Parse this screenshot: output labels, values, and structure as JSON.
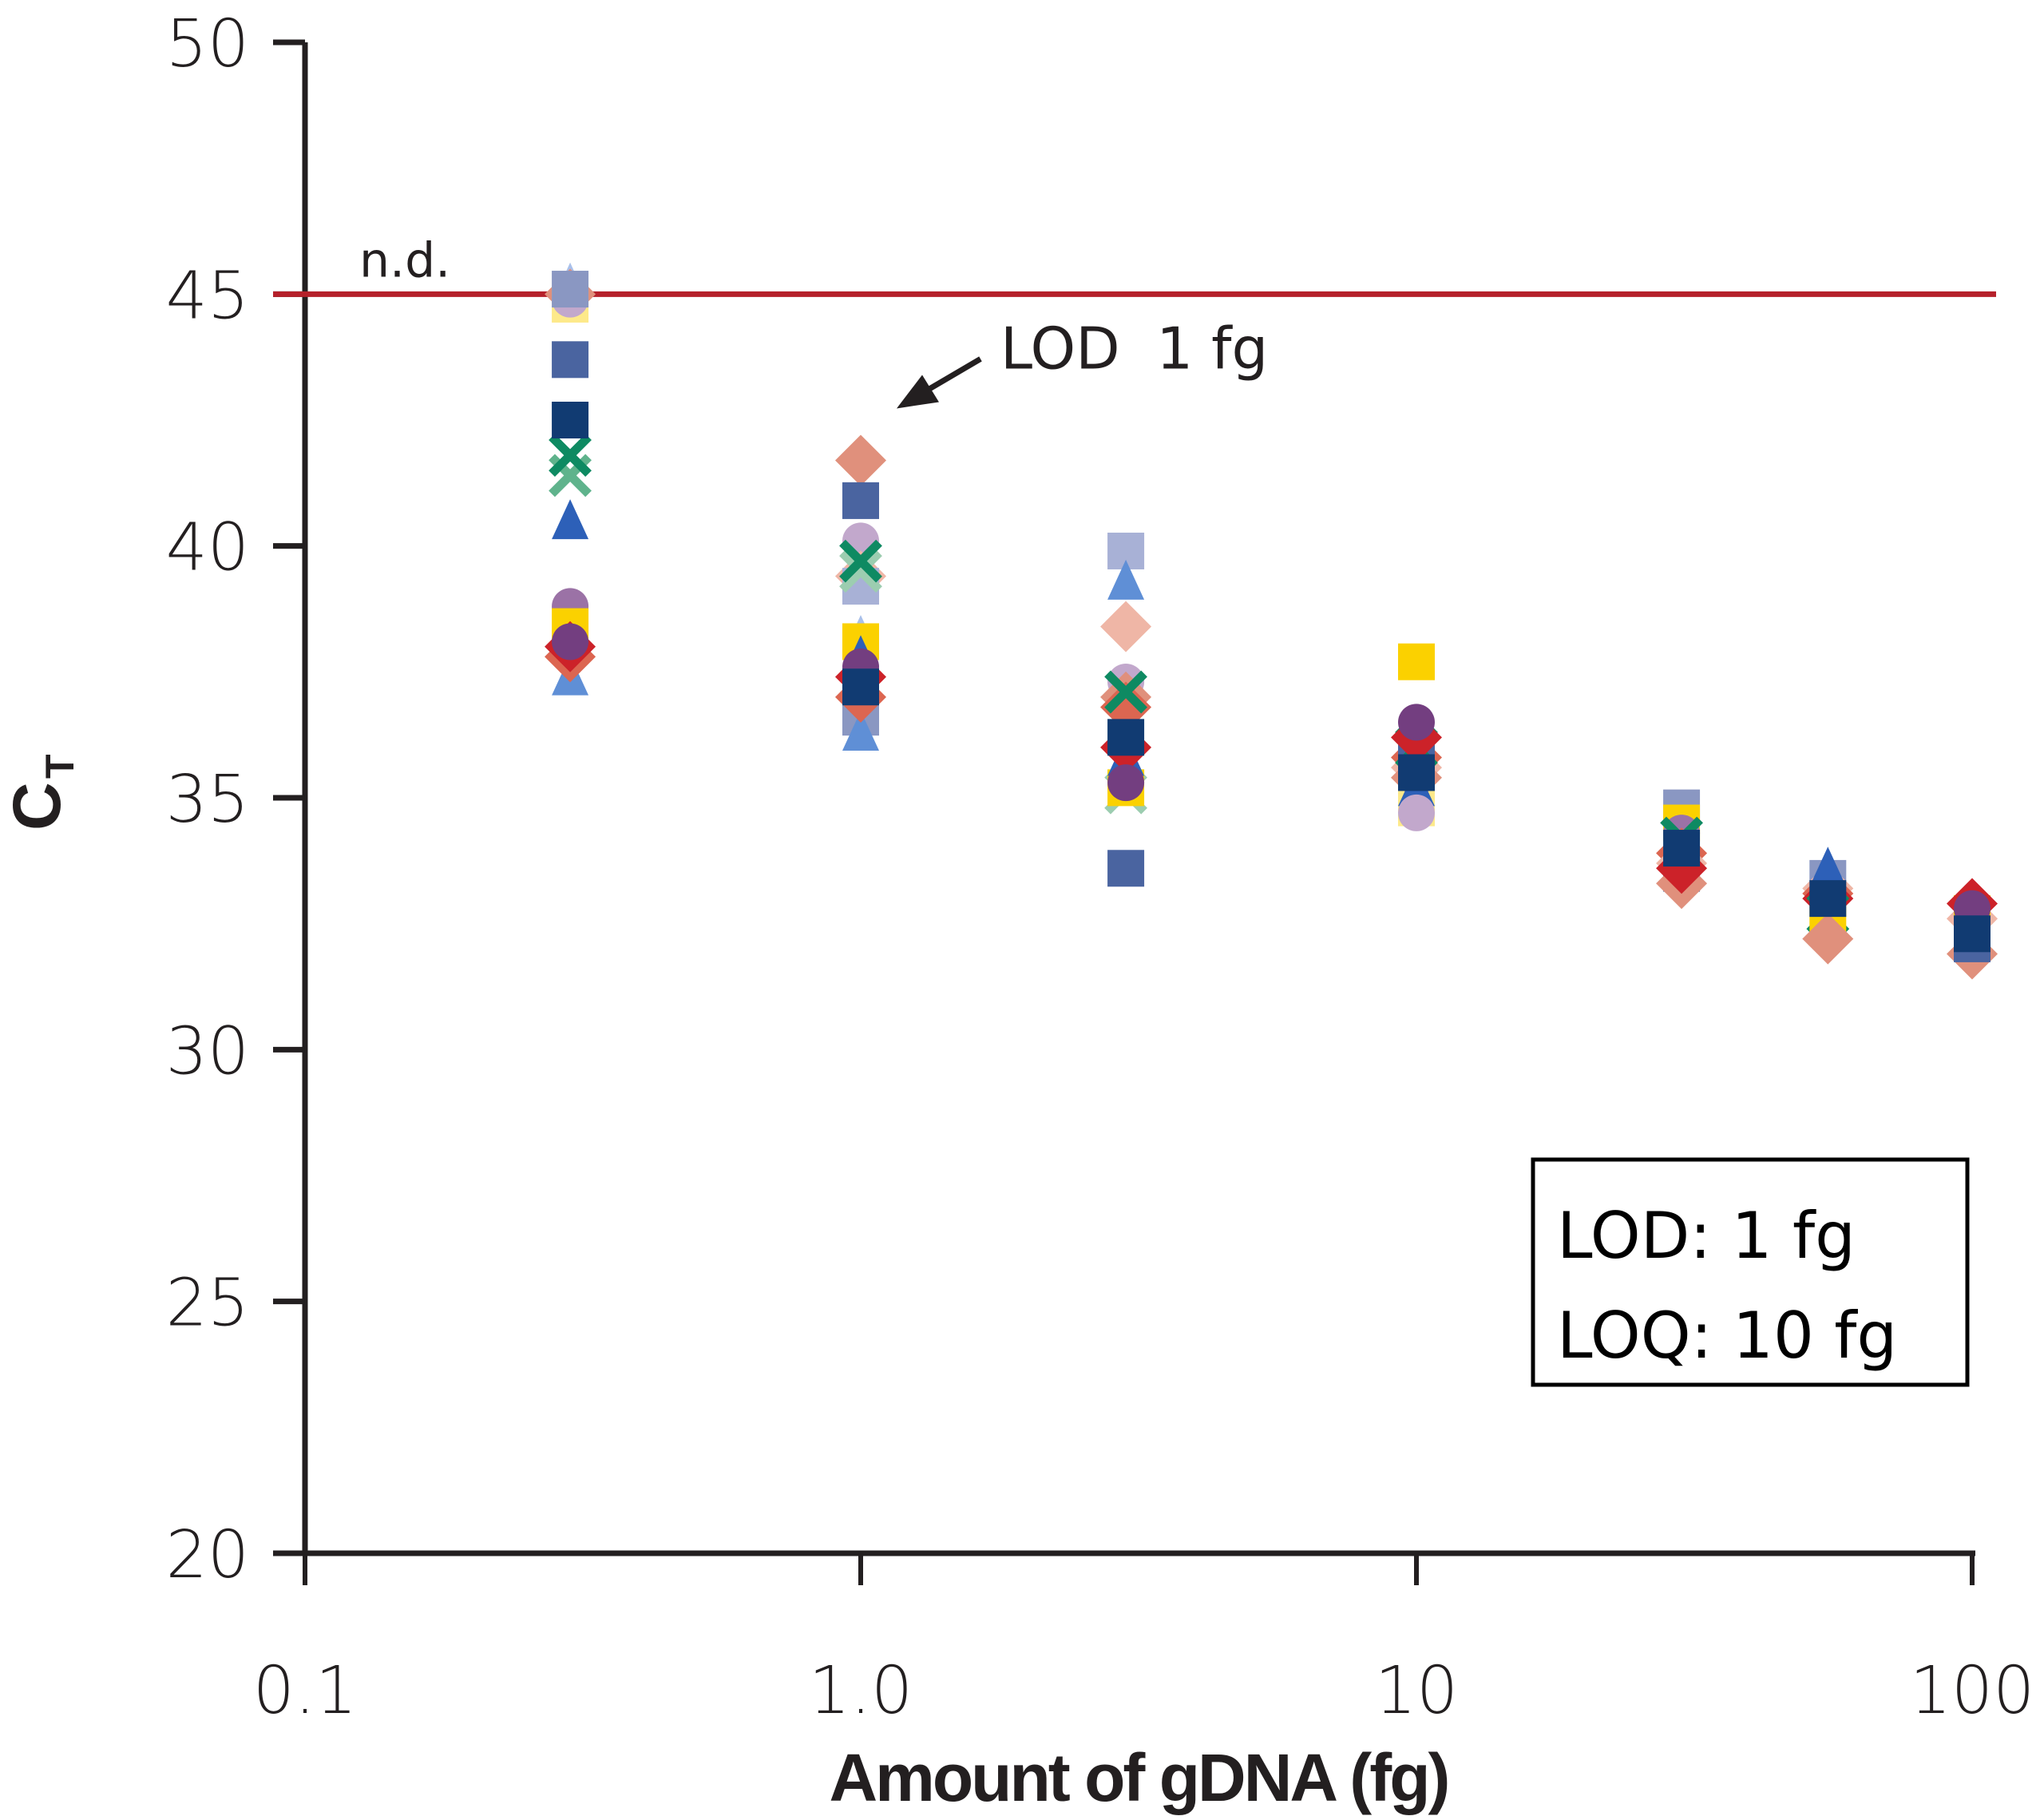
{
  "chart_data": {
    "type": "scatter",
    "title": "",
    "xlabel": "Amount of gDNA (fg)",
    "ylabel": "C",
    "ylabel_subscript": "T",
    "xscale": "log",
    "xlim": [
      0.1,
      100
    ],
    "ylim": [
      20,
      50
    ],
    "x_ticks": [
      0.1,
      1,
      10,
      100
    ],
    "x_tick_labels": [
      "0.1",
      "1.0",
      "10",
      "100"
    ],
    "y_ticks": [
      20,
      25,
      30,
      35,
      40,
      45,
      50
    ],
    "y_tick_labels": [
      "20",
      "25",
      "30",
      "35",
      "40",
      "45",
      "50"
    ],
    "grid": false,
    "legend": null,
    "reference_line": {
      "y": 45,
      "label": "n.d.",
      "color": "#b5202a"
    },
    "annotation": {
      "text": "LOD  1 fg",
      "points_to": {
        "x": 1.0,
        "y": 41.7
      }
    },
    "inset_box": {
      "lines": [
        "LOD: 1 fg",
        "LOQ: 10 fg"
      ],
      "placement": "bottom-right"
    },
    "marker_styles": {
      "sq_lav": {
        "shape": "square",
        "color": "#8a97c2"
      },
      "sq_lav2": {
        "shape": "square",
        "color": "#a8b1d6"
      },
      "sq_blue": {
        "shape": "square",
        "color": "#4a64a0"
      },
      "sq_navy": {
        "shape": "square",
        "color": "#113b72"
      },
      "sq_yel": {
        "shape": "square",
        "color": "#fbd100"
      },
      "sq_yel2": {
        "shape": "square",
        "color": "#fde98a"
      },
      "x_green": {
        "shape": "x",
        "color": "#0e8a62"
      },
      "x_lgreen": {
        "shape": "x",
        "color": "#5fb38c"
      },
      "x_pgreen": {
        "shape": "x",
        "color": "#9ccdb0"
      },
      "tri_blue": {
        "shape": "triangle",
        "color": "#2d60b8"
      },
      "tri_lblue": {
        "shape": "triangle",
        "color": "#5f8fd6"
      },
      "tri_pblue": {
        "shape": "triangle",
        "color": "#a9c0ea"
      },
      "ci_purple": {
        "shape": "circle",
        "color": "#733e80"
      },
      "ci_mauve": {
        "shape": "circle",
        "color": "#9b72a6"
      },
      "ci_lav": {
        "shape": "circle",
        "color": "#c2a8cc"
      },
      "di_red": {
        "shape": "diamond",
        "color": "#cc2229"
      },
      "di_salmon": {
        "shape": "diamond",
        "color": "#e0907c"
      },
      "di_coral": {
        "shape": "diamond",
        "color": "#dc6651"
      },
      "di_pink": {
        "shape": "diamond",
        "color": "#efb6a6"
      }
    },
    "points": [
      {
        "x": 0.3,
        "y": 45.2,
        "m": "tri_pblue"
      },
      {
        "x": 0.3,
        "y": 45.0,
        "m": "di_salmon"
      },
      {
        "x": 0.3,
        "y": 44.8,
        "m": "sq_yel2"
      },
      {
        "x": 0.3,
        "y": 44.9,
        "m": "ci_lav"
      },
      {
        "x": 0.3,
        "y": 45.1,
        "m": "sq_lav"
      },
      {
        "x": 0.3,
        "y": 43.7,
        "m": "sq_blue"
      },
      {
        "x": 0.3,
        "y": 41.4,
        "m": "x_lgreen"
      },
      {
        "x": 0.3,
        "y": 41.8,
        "m": "x_green"
      },
      {
        "x": 0.3,
        "y": 42.5,
        "m": "sq_navy"
      },
      {
        "x": 0.3,
        "y": 40.5,
        "m": "tri_blue"
      },
      {
        "x": 0.3,
        "y": 37.4,
        "m": "tri_lblue"
      },
      {
        "x": 0.3,
        "y": 38.8,
        "m": "ci_mauve"
      },
      {
        "x": 0.3,
        "y": 38.4,
        "m": "sq_yel"
      },
      {
        "x": 0.3,
        "y": 37.8,
        "m": "di_coral"
      },
      {
        "x": 0.3,
        "y": 38.0,
        "m": "di_red"
      },
      {
        "x": 0.3,
        "y": 38.1,
        "m": "ci_purple"
      },
      {
        "x": 1.0,
        "y": 41.7,
        "m": "di_salmon"
      },
      {
        "x": 1.0,
        "y": 40.9,
        "m": "sq_blue"
      },
      {
        "x": 1.0,
        "y": 40.1,
        "m": "ci_lav"
      },
      {
        "x": 1.0,
        "y": 39.4,
        "m": "di_pink"
      },
      {
        "x": 1.0,
        "y": 39.2,
        "m": "sq_lav2"
      },
      {
        "x": 1.0,
        "y": 39.5,
        "m": "x_pgreen"
      },
      {
        "x": 1.0,
        "y": 39.7,
        "m": "x_green"
      },
      {
        "x": 1.0,
        "y": 38.2,
        "m": "tri_pblue"
      },
      {
        "x": 1.0,
        "y": 38.1,
        "m": "sq_yel"
      },
      {
        "x": 1.0,
        "y": 36.6,
        "m": "sq_lav"
      },
      {
        "x": 1.0,
        "y": 36.3,
        "m": "tri_lblue"
      },
      {
        "x": 1.0,
        "y": 37.0,
        "m": "di_coral"
      },
      {
        "x": 1.0,
        "y": 37.8,
        "m": "tri_blue"
      },
      {
        "x": 1.0,
        "y": 37.4,
        "m": "di_red"
      },
      {
        "x": 1.0,
        "y": 37.6,
        "m": "ci_purple"
      },
      {
        "x": 1.0,
        "y": 37.2,
        "m": "sq_navy"
      },
      {
        "x": 3.0,
        "y": 39.9,
        "m": "sq_lav2"
      },
      {
        "x": 3.0,
        "y": 39.3,
        "m": "tri_lblue"
      },
      {
        "x": 3.0,
        "y": 38.4,
        "m": "di_pink"
      },
      {
        "x": 3.0,
        "y": 37.3,
        "m": "ci_lav"
      },
      {
        "x": 3.0,
        "y": 37.0,
        "m": "di_salmon"
      },
      {
        "x": 3.0,
        "y": 36.8,
        "m": "di_coral"
      },
      {
        "x": 3.0,
        "y": 37.1,
        "m": "x_green"
      },
      {
        "x": 3.0,
        "y": 35.1,
        "m": "x_pgreen"
      },
      {
        "x": 3.0,
        "y": 35.2,
        "m": "sq_yel"
      },
      {
        "x": 3.0,
        "y": 35.8,
        "m": "tri_blue"
      },
      {
        "x": 3.0,
        "y": 36.0,
        "m": "di_red"
      },
      {
        "x": 3.0,
        "y": 36.2,
        "m": "sq_navy"
      },
      {
        "x": 3.0,
        "y": 35.3,
        "m": "ci_purple"
      },
      {
        "x": 3.0,
        "y": 33.6,
        "m": "sq_blue"
      },
      {
        "x": 10,
        "y": 37.7,
        "m": "sq_yel"
      },
      {
        "x": 10,
        "y": 34.8,
        "m": "sq_yel2"
      },
      {
        "x": 10,
        "y": 35.8,
        "m": "di_coral"
      },
      {
        "x": 10,
        "y": 35.6,
        "m": "di_pink"
      },
      {
        "x": 10,
        "y": 35.4,
        "m": "di_salmon"
      },
      {
        "x": 10,
        "y": 36.0,
        "m": "sq_blue"
      },
      {
        "x": 10,
        "y": 36.0,
        "m": "x_green"
      },
      {
        "x": 10,
        "y": 35.2,
        "m": "tri_blue"
      },
      {
        "x": 10,
        "y": 36.2,
        "m": "di_red"
      },
      {
        "x": 10,
        "y": 36.5,
        "m": "ci_purple"
      },
      {
        "x": 10,
        "y": 35.5,
        "m": "sq_navy"
      },
      {
        "x": 10,
        "y": 34.7,
        "m": "ci_lav"
      },
      {
        "x": 30,
        "y": 34.8,
        "m": "sq_lav"
      },
      {
        "x": 30,
        "y": 34.5,
        "m": "sq_yel"
      },
      {
        "x": 30,
        "y": 34.3,
        "m": "ci_mauve"
      },
      {
        "x": 30,
        "y": 34.2,
        "m": "x_green"
      },
      {
        "x": 30,
        "y": 33.9,
        "m": "di_coral"
      },
      {
        "x": 30,
        "y": 33.7,
        "m": "di_pink"
      },
      {
        "x": 30,
        "y": 33.5,
        "m": "sq_blue"
      },
      {
        "x": 30,
        "y": 33.3,
        "m": "di_salmon"
      },
      {
        "x": 30,
        "y": 33.6,
        "m": "di_red"
      },
      {
        "x": 30,
        "y": 34.0,
        "m": "sq_navy"
      },
      {
        "x": 55,
        "y": 33.4,
        "m": "sq_lav"
      },
      {
        "x": 55,
        "y": 33.2,
        "m": "di_pink"
      },
      {
        "x": 55,
        "y": 33.1,
        "m": "di_coral"
      },
      {
        "x": 55,
        "y": 33.0,
        "m": "di_red"
      },
      {
        "x": 55,
        "y": 33.6,
        "m": "tri_blue"
      },
      {
        "x": 55,
        "y": 32.7,
        "m": "x_green"
      },
      {
        "x": 55,
        "y": 32.5,
        "m": "sq_yel"
      },
      {
        "x": 55,
        "y": 32.2,
        "m": "di_salmon"
      },
      {
        "x": 55,
        "y": 33.0,
        "m": "sq_navy"
      },
      {
        "x": 100,
        "y": 32.6,
        "m": "di_pink"
      },
      {
        "x": 100,
        "y": 32.7,
        "m": "sq_yel"
      },
      {
        "x": 100,
        "y": 31.9,
        "m": "di_salmon"
      },
      {
        "x": 100,
        "y": 32.1,
        "m": "sq_blue"
      },
      {
        "x": 100,
        "y": 32.9,
        "m": "di_red"
      },
      {
        "x": 100,
        "y": 32.8,
        "m": "ci_purple"
      },
      {
        "x": 100,
        "y": 32.3,
        "m": "sq_navy"
      }
    ]
  }
}
